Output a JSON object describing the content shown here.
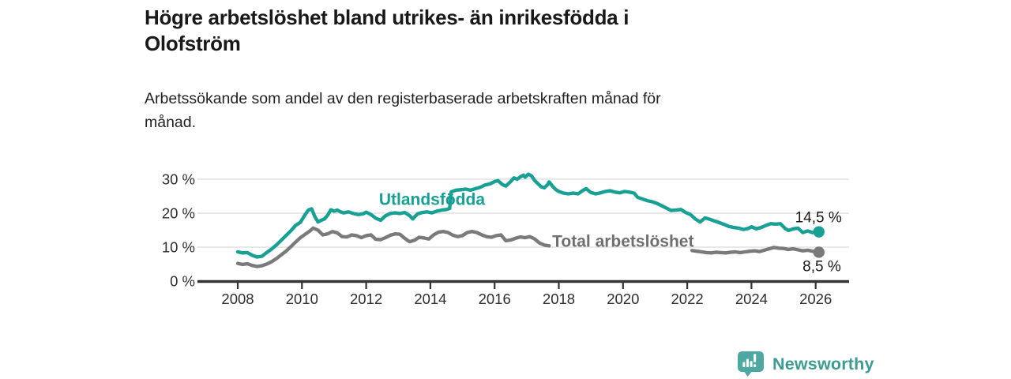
{
  "header": {
    "title_lines": [
      "Högre arbetslöshet bland utrikes- än inrikesfödda i",
      "Olofström"
    ],
    "subtitle_lines": [
      "Arbetssökande som andel av den registerbaserade arbetskraften månad för",
      "månad."
    ]
  },
  "colors": {
    "series_foreign": "#17A093",
    "series_total": "#7A7A7A",
    "series_total_label": "#6F6F6F",
    "value_label_text": "#191919",
    "axis": "#333333",
    "tick_text": "#2E2E2E",
    "grid": "#DADADA",
    "brand_text": "#3D9B94",
    "brand_icon_fill": "#4EA7A0"
  },
  "chart_data": {
    "type": "line",
    "title": "Högre arbetslöshet bland utrikes- än inrikesfödda i Olofström",
    "subtitle": "Arbetssökande som andel av den registerbaserade arbetskraften månad för månad.",
    "grid": true,
    "legend_position": "inline-labels",
    "x_axis": {
      "range": [
        2007.75,
        2027.05
      ],
      "ticks": [
        2008,
        2010,
        2012,
        2014,
        2016,
        2018,
        2020,
        2022,
        2024,
        2026
      ],
      "tick_labels": [
        "2008",
        "2010",
        "2012",
        "2014",
        "2016",
        "2018",
        "2020",
        "2022",
        "2024",
        "2026"
      ]
    },
    "y_axis": {
      "range": [
        0,
        32
      ],
      "unit": "%",
      "ticks": [
        {
          "value": 0,
          "label": "0 %"
        },
        {
          "value": 10,
          "label": "10 %"
        },
        {
          "value": 20,
          "label": "20 %"
        },
        {
          "value": 30,
          "label": "30 %"
        }
      ]
    },
    "series": [
      {
        "name": "Total arbetslöshet",
        "color_key": "series_total",
        "label_color_key": "series_total_label",
        "label_pos": {
          "year": 2020.0,
          "value": 11.9
        },
        "end_label": "8,5 %",
        "end_value": 8.5,
        "end_label_offset": {
          "dx": 28,
          "dy": 24
        },
        "segments": [
          [
            [
              2008.0,
              5.2
            ],
            [
              2008.15,
              4.9
            ],
            [
              2008.3,
              5.1
            ],
            [
              2008.45,
              4.6
            ],
            [
              2008.6,
              4.3
            ],
            [
              2008.75,
              4.5
            ],
            [
              2008.9,
              5.0
            ],
            [
              2009.05,
              5.7
            ],
            [
              2009.2,
              6.6
            ],
            [
              2009.35,
              7.7
            ],
            [
              2009.5,
              8.8
            ],
            [
              2009.65,
              10.1
            ],
            [
              2009.8,
              11.5
            ],
            [
              2009.95,
              12.8
            ],
            [
              2010.1,
              13.8
            ],
            [
              2010.25,
              14.8
            ],
            [
              2010.35,
              15.6
            ],
            [
              2010.5,
              15.0
            ],
            [
              2010.65,
              13.6
            ],
            [
              2010.8,
              13.9
            ],
            [
              2010.95,
              14.6
            ],
            [
              2011.1,
              14.2
            ],
            [
              2011.25,
              13.1
            ],
            [
              2011.4,
              13.0
            ],
            [
              2011.55,
              13.6
            ],
            [
              2011.7,
              13.4
            ],
            [
              2011.85,
              12.8
            ],
            [
              2012.0,
              13.4
            ],
            [
              2012.15,
              13.6
            ],
            [
              2012.3,
              12.3
            ],
            [
              2012.45,
              12.2
            ],
            [
              2012.6,
              12.8
            ],
            [
              2012.75,
              13.5
            ],
            [
              2012.9,
              13.9
            ],
            [
              2013.05,
              13.8
            ],
            [
              2013.2,
              12.6
            ],
            [
              2013.35,
              11.6
            ],
            [
              2013.5,
              12.0
            ],
            [
              2013.65,
              12.9
            ],
            [
              2013.8,
              12.7
            ],
            [
              2013.95,
              12.4
            ],
            [
              2014.1,
              13.6
            ],
            [
              2014.25,
              14.4
            ],
            [
              2014.4,
              14.6
            ],
            [
              2014.55,
              14.3
            ],
            [
              2014.7,
              13.5
            ],
            [
              2014.85,
              13.1
            ],
            [
              2015.0,
              13.4
            ],
            [
              2015.15,
              14.3
            ],
            [
              2015.3,
              14.6
            ],
            [
              2015.45,
              14.3
            ],
            [
              2015.6,
              13.6
            ],
            [
              2015.75,
              13.1
            ],
            [
              2015.9,
              12.9
            ],
            [
              2016.05,
              13.4
            ],
            [
              2016.2,
              13.6
            ],
            [
              2016.35,
              11.9
            ],
            [
              2016.5,
              12.1
            ],
            [
              2016.65,
              12.6
            ],
            [
              2016.8,
              13.0
            ],
            [
              2016.95,
              12.8
            ],
            [
              2017.1,
              13.1
            ],
            [
              2017.25,
              12.4
            ],
            [
              2017.4,
              11.2
            ],
            [
              2017.55,
              10.6
            ],
            [
              2017.7,
              10.4
            ]
          ],
          [
            [
              2022.15,
              9.0
            ],
            [
              2022.3,
              8.8
            ],
            [
              2022.45,
              8.6
            ],
            [
              2022.6,
              8.4
            ],
            [
              2022.75,
              8.3
            ],
            [
              2022.9,
              8.5
            ],
            [
              2023.05,
              8.4
            ],
            [
              2023.2,
              8.3
            ],
            [
              2023.35,
              8.5
            ],
            [
              2023.5,
              8.6
            ],
            [
              2023.65,
              8.4
            ],
            [
              2023.8,
              8.6
            ],
            [
              2023.95,
              8.8
            ],
            [
              2024.1,
              8.9
            ],
            [
              2024.25,
              8.7
            ],
            [
              2024.4,
              9.1
            ],
            [
              2024.55,
              9.5
            ],
            [
              2024.7,
              9.9
            ],
            [
              2024.85,
              9.7
            ],
            [
              2025.0,
              9.6
            ],
            [
              2025.15,
              9.3
            ],
            [
              2025.3,
              9.5
            ],
            [
              2025.45,
              9.2
            ],
            [
              2025.6,
              8.9
            ],
            [
              2025.75,
              9.1
            ],
            [
              2025.9,
              8.8
            ],
            [
              2026.1,
              8.5
            ]
          ]
        ]
      },
      {
        "name": "Utlandsfödda",
        "color_key": "series_foreign",
        "label_color_key": "series_foreign",
        "label_pos": {
          "year": 2014.05,
          "value": 24.2
        },
        "end_label": "14,5 %",
        "end_value": 14.5,
        "end_label_offset": {
          "dx": 29,
          "dy": -12
        },
        "segments": [
          [
            [
              2008.0,
              8.6
            ],
            [
              2008.15,
              8.3
            ],
            [
              2008.3,
              8.4
            ],
            [
              2008.45,
              7.6
            ],
            [
              2008.6,
              7.1
            ],
            [
              2008.75,
              7.3
            ],
            [
              2008.9,
              8.4
            ],
            [
              2009.05,
              9.4
            ],
            [
              2009.2,
              10.6
            ],
            [
              2009.35,
              12.0
            ],
            [
              2009.5,
              13.4
            ],
            [
              2009.65,
              14.8
            ],
            [
              2009.8,
              16.4
            ],
            [
              2009.95,
              17.3
            ],
            [
              2010.1,
              19.6
            ],
            [
              2010.2,
              20.9
            ],
            [
              2010.3,
              21.3
            ],
            [
              2010.4,
              19.0
            ],
            [
              2010.5,
              17.4
            ],
            [
              2010.6,
              17.9
            ],
            [
              2010.7,
              18.3
            ],
            [
              2010.8,
              19.4
            ],
            [
              2010.9,
              21.0
            ],
            [
              2011.0,
              20.6
            ],
            [
              2011.1,
              20.9
            ],
            [
              2011.2,
              20.4
            ],
            [
              2011.3,
              20.1
            ],
            [
              2011.45,
              20.4
            ],
            [
              2011.6,
              19.9
            ],
            [
              2011.75,
              19.6
            ],
            [
              2011.9,
              19.8
            ],
            [
              2012.0,
              20.3
            ],
            [
              2012.15,
              19.6
            ],
            [
              2012.3,
              18.5
            ],
            [
              2012.45,
              17.9
            ],
            [
              2012.6,
              19.2
            ],
            [
              2012.75,
              19.9
            ],
            [
              2012.9,
              20.1
            ],
            [
              2013.05,
              19.9
            ],
            [
              2013.2,
              20.2
            ],
            [
              2013.35,
              19.3
            ],
            [
              2013.45,
              18.3
            ],
            [
              2013.6,
              19.8
            ],
            [
              2013.75,
              20.2
            ],
            [
              2013.9,
              20.4
            ],
            [
              2014.05,
              20.1
            ],
            [
              2014.2,
              20.6
            ],
            [
              2014.35,
              20.9
            ],
            [
              2014.5,
              21.1
            ],
            [
              2014.6,
              21.4
            ],
            [
              2014.65,
              26.3
            ],
            [
              2014.8,
              26.8
            ],
            [
              2014.95,
              26.9
            ],
            [
              2015.1,
              27.1
            ],
            [
              2015.25,
              26.8
            ],
            [
              2015.4,
              27.2
            ],
            [
              2015.55,
              27.6
            ],
            [
              2015.7,
              28.3
            ],
            [
              2015.85,
              28.6
            ],
            [
              2016.0,
              29.3
            ],
            [
              2016.1,
              29.6
            ],
            [
              2016.25,
              28.4
            ],
            [
              2016.35,
              28.0
            ],
            [
              2016.5,
              29.3
            ],
            [
              2016.6,
              30.4
            ],
            [
              2016.7,
              30.0
            ],
            [
              2016.8,
              30.7
            ],
            [
              2016.9,
              31.2
            ],
            [
              2016.95,
              30.6
            ],
            [
              2017.05,
              31.5
            ],
            [
              2017.15,
              31.0
            ],
            [
              2017.25,
              29.6
            ],
            [
              2017.35,
              28.7
            ],
            [
              2017.45,
              27.8
            ],
            [
              2017.55,
              27.5
            ],
            [
              2017.65,
              28.4
            ],
            [
              2017.7,
              29.2
            ],
            [
              2017.8,
              28.0
            ],
            [
              2017.9,
              27.0
            ],
            [
              2018.0,
              26.4
            ],
            [
              2018.15,
              25.9
            ],
            [
              2018.3,
              25.7
            ],
            [
              2018.45,
              25.9
            ],
            [
              2018.6,
              25.7
            ],
            [
              2018.75,
              26.7
            ],
            [
              2018.85,
              27.2
            ],
            [
              2019.0,
              26.1
            ],
            [
              2019.15,
              25.7
            ],
            [
              2019.3,
              26.0
            ],
            [
              2019.45,
              26.4
            ],
            [
              2019.6,
              26.6
            ],
            [
              2019.75,
              26.2
            ],
            [
              2019.9,
              26.0
            ],
            [
              2020.05,
              26.4
            ],
            [
              2020.2,
              26.2
            ],
            [
              2020.35,
              25.9
            ],
            [
              2020.45,
              24.7
            ],
            [
              2020.6,
              24.2
            ],
            [
              2020.75,
              23.7
            ],
            [
              2020.9,
              23.4
            ],
            [
              2021.05,
              22.9
            ],
            [
              2021.2,
              22.2
            ],
            [
              2021.35,
              21.5
            ],
            [
              2021.5,
              20.8
            ],
            [
              2021.65,
              20.9
            ],
            [
              2021.8,
              21.1
            ],
            [
              2021.95,
              20.2
            ],
            [
              2022.1,
              19.6
            ],
            [
              2022.25,
              18.3
            ],
            [
              2022.4,
              17.4
            ],
            [
              2022.55,
              18.6
            ],
            [
              2022.7,
              18.2
            ],
            [
              2022.85,
              17.7
            ],
            [
              2023.0,
              17.2
            ],
            [
              2023.15,
              16.7
            ],
            [
              2023.3,
              16.1
            ],
            [
              2023.45,
              15.8
            ],
            [
              2023.6,
              15.6
            ],
            [
              2023.75,
              15.2
            ],
            [
              2023.9,
              15.5
            ],
            [
              2024.0,
              16.0
            ],
            [
              2024.15,
              15.4
            ],
            [
              2024.3,
              15.8
            ],
            [
              2024.45,
              16.4
            ],
            [
              2024.6,
              16.9
            ],
            [
              2024.75,
              16.8
            ],
            [
              2024.9,
              16.9
            ],
            [
              2025.05,
              15.5
            ],
            [
              2025.15,
              14.9
            ],
            [
              2025.3,
              15.4
            ],
            [
              2025.45,
              15.6
            ],
            [
              2025.6,
              14.3
            ],
            [
              2025.75,
              14.8
            ],
            [
              2025.9,
              14.3
            ],
            [
              2026.1,
              14.5
            ]
          ]
        ]
      }
    ]
  },
  "footer": {
    "brand": "Newsworthy",
    "logo_icon": "bar-chart-bubble-icon"
  }
}
